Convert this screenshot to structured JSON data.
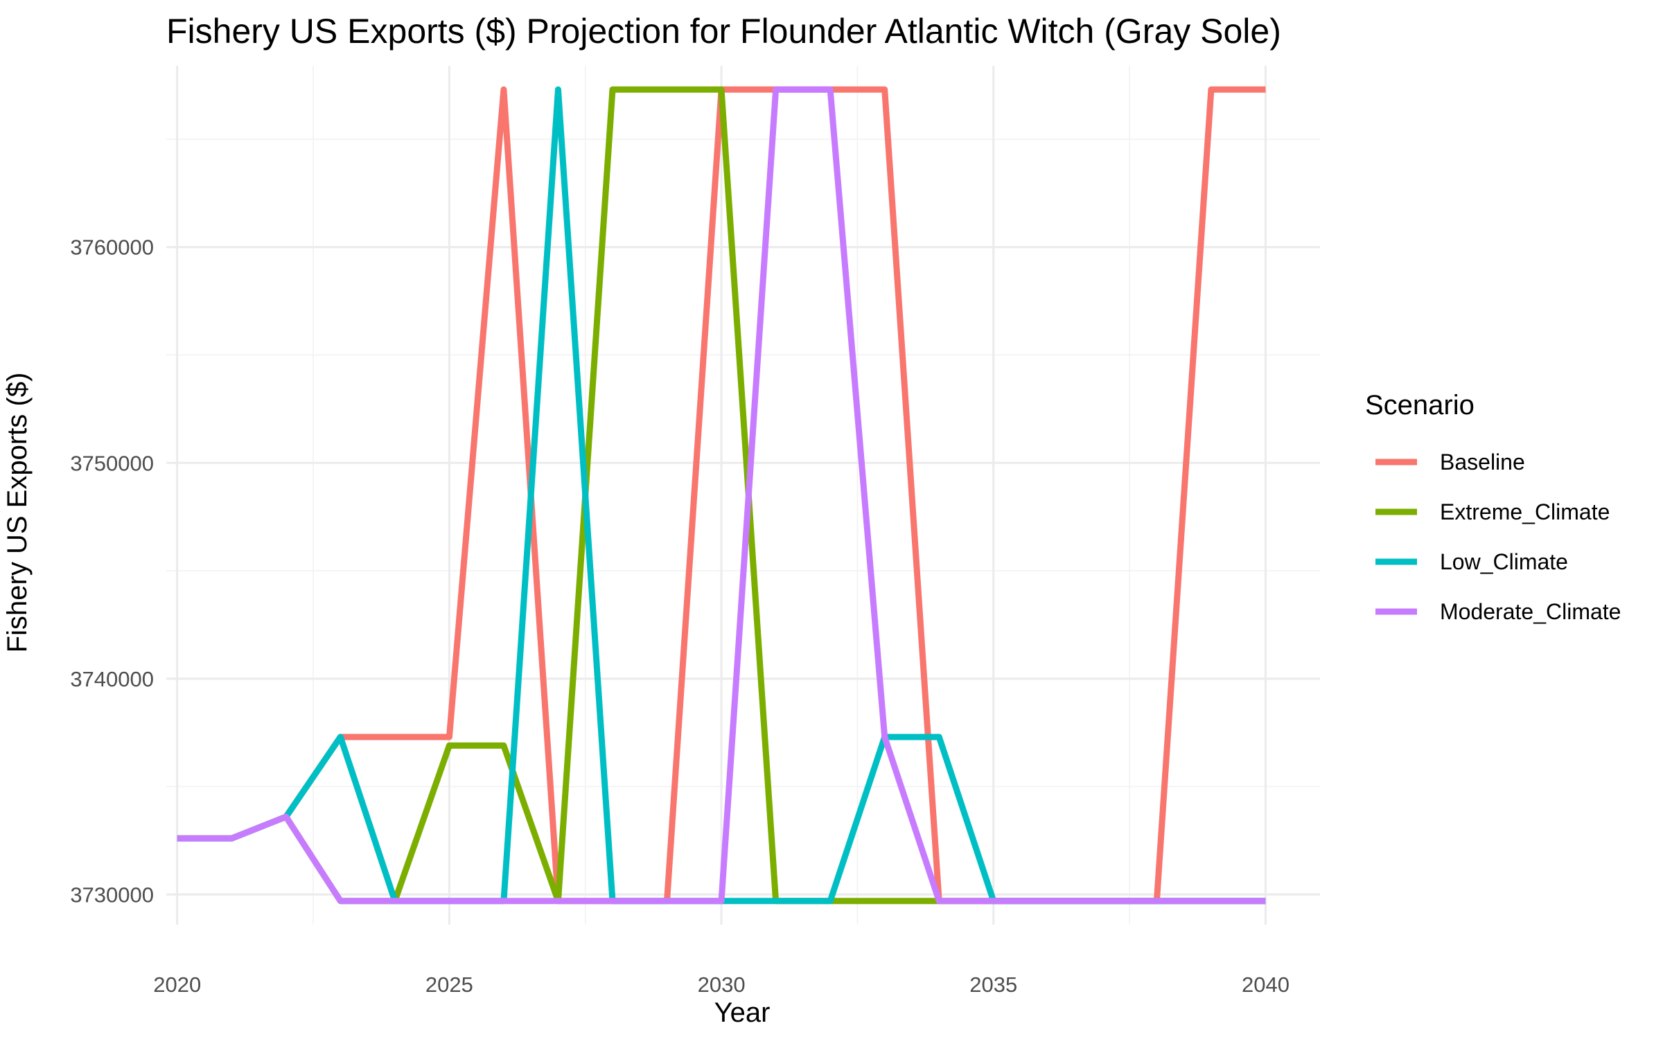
{
  "chart_data": {
    "type": "line",
    "title": "Fishery US Exports ($) Projection for Flounder Atlantic Witch (Gray Sole)",
    "xlabel": "Year",
    "ylabel": "Fishery US Exports ($)",
    "legend_title": "Scenario",
    "legend_position": "right",
    "grid": true,
    "xlim": [
      2019.8,
      2041
    ],
    "ylim": [
      3728600,
      3768400
    ],
    "x_ticks": [
      2020,
      2025,
      2030,
      2035,
      2040
    ],
    "y_ticks": [
      3730000,
      3740000,
      3750000,
      3760000
    ],
    "x": [
      2020,
      2021,
      2022,
      2023,
      2024,
      2025,
      2026,
      2027,
      2028,
      2029,
      2030,
      2031,
      2032,
      2033,
      2034,
      2035,
      2036,
      2037,
      2038,
      2039,
      2040
    ],
    "series": [
      {
        "name": "Baseline",
        "color": "#F8766D",
        "values": [
          3732600,
          3732600,
          3733600,
          3737300,
          3737300,
          3737300,
          3767300,
          3729700,
          3729700,
          3729700,
          3767300,
          3767300,
          3767300,
          3767300,
          3729700,
          3729700,
          3729700,
          3729700,
          3729700,
          3767300,
          3767300
        ]
      },
      {
        "name": "Extreme_Climate",
        "color": "#7CAE00",
        "values": [
          3732600,
          3732600,
          3733600,
          3729700,
          3729700,
          3736900,
          3736900,
          3729700,
          3767300,
          3767300,
          3767300,
          3729700,
          3729700,
          3729700,
          3729700,
          3729700,
          3729700,
          3729700,
          3729700,
          3729700,
          3729700
        ]
      },
      {
        "name": "Low_Climate",
        "color": "#00BFC4",
        "values": [
          3732600,
          3732600,
          3733600,
          3737300,
          3729700,
          3729700,
          3729700,
          3767300,
          3729700,
          3729700,
          3729700,
          3729700,
          3729700,
          3737300,
          3737300,
          3729700,
          3729700,
          3729700,
          3729700,
          3729700,
          3729700
        ]
      },
      {
        "name": "Moderate_Climate",
        "color": "#C77CFF",
        "values": [
          3732600,
          3732600,
          3733600,
          3729700,
          3729700,
          3729700,
          3729700,
          3729700,
          3729700,
          3729700,
          3729700,
          3767300,
          3767300,
          3737300,
          3729700,
          3729700,
          3729700,
          3729700,
          3729700,
          3729700,
          3729700
        ]
      }
    ]
  }
}
